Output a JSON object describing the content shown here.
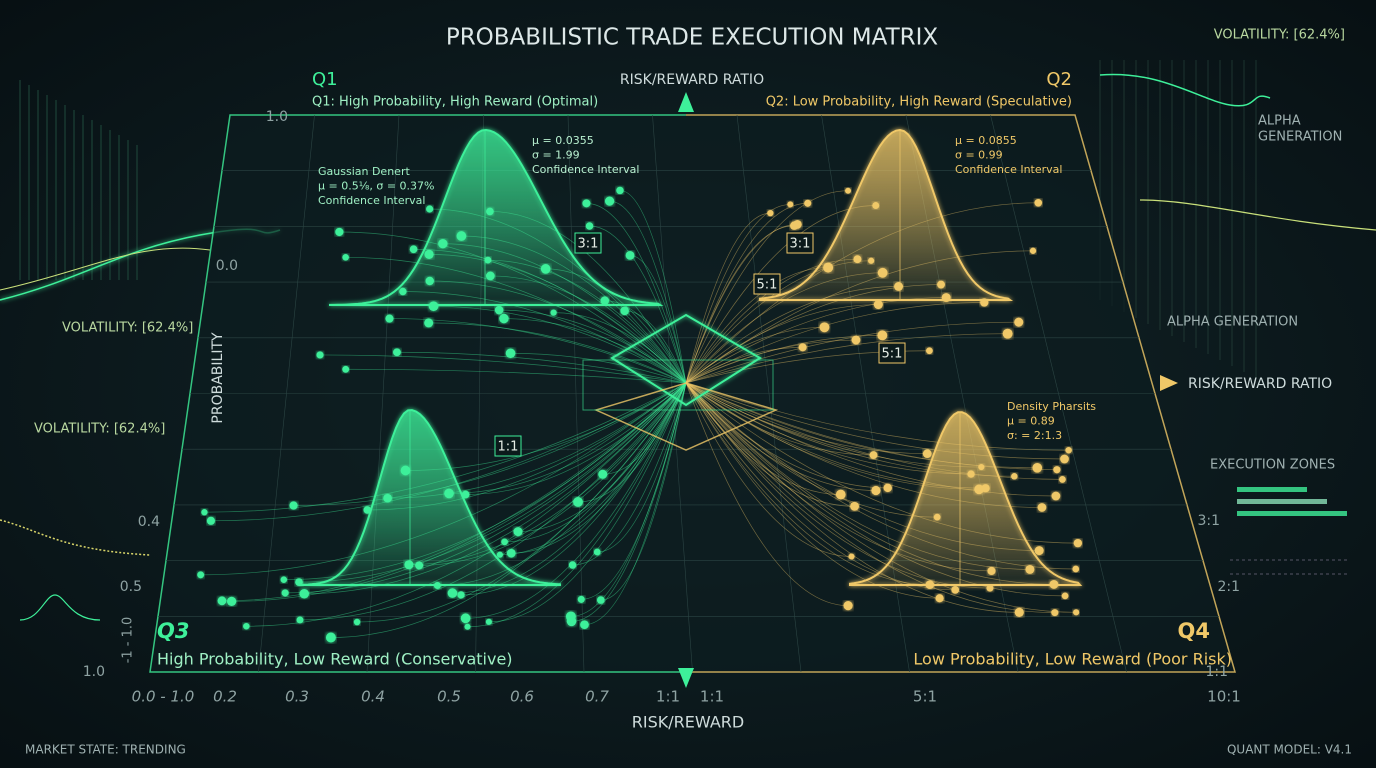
{
  "header": {
    "title": "PROBABILISTIC TRADE EXECUTION MATRIX",
    "volatility": "VOLATILITY: [62.4%]"
  },
  "side_left": {
    "volatility_1": "VOLATILITY: [62.4%]",
    "volatility_2": "VOLATILITY: [62.4%]"
  },
  "side_right": {
    "alpha_generation_lines": [
      "ALPHA",
      "GENERATION"
    ],
    "alpha_generation": "ALPHA GENERATION",
    "execution_zones": "EXECUTION ZONES"
  },
  "axes": {
    "top_label": "RISK/REWARD RATIO",
    "right_label": "RISK/REWARD RATIO",
    "left_label": "PROBABILITY",
    "bottom_label": "RISK/REWARD",
    "y_left_ticks": [
      "1.0",
      "0.0",
      "0.4",
      "0.5",
      "1.0",
      "-1 - 1.0"
    ],
    "y_right_ticks": [
      "3:1",
      "2:1",
      "1:1"
    ],
    "x_ticks": [
      "0.0 - 1.0",
      "0.2",
      "0.3",
      "0.4",
      "0.5",
      "0.6",
      "0.7",
      "1:1",
      "1:1",
      "5:1",
      "10:1"
    ]
  },
  "quadrants": [
    {
      "id": "Q1",
      "label": "Q1: High Probability, High Reward (Optimal)"
    },
    {
      "id": "Q2",
      "label": "Q2: Low Probability, High Reward (Speculative)"
    },
    {
      "id": "Q3",
      "label": "High Probability, Low Reward (Conservative)"
    },
    {
      "id": "Q4",
      "label": "Low Probability, Low Reward (Poor Risk)"
    }
  ],
  "annotations": [
    {
      "lines": [
        "μ = 0.0355",
        "σ = 1.99",
        "Confidence Interval"
      ]
    },
    {
      "lines": [
        "Gaussian Denert",
        "μ = 0.5⅛, σ = 0.37%",
        "Confidence Interval"
      ]
    },
    {
      "lines": [
        "μ = 0.0855",
        "σ = 0.99",
        "Confidence Interval"
      ]
    },
    {
      "lines": [
        "Density Pharsits",
        "μ = 0.89",
        "σ: = 2:1.3"
      ]
    }
  ],
  "ratio_boxes": [
    "3:1",
    "3:1",
    "5:1",
    "5:1",
    "1:1"
  ],
  "footer": {
    "market_state": "MARKET STATE: TRENDING",
    "model": "QUANT MODEL: V4.1"
  }
}
